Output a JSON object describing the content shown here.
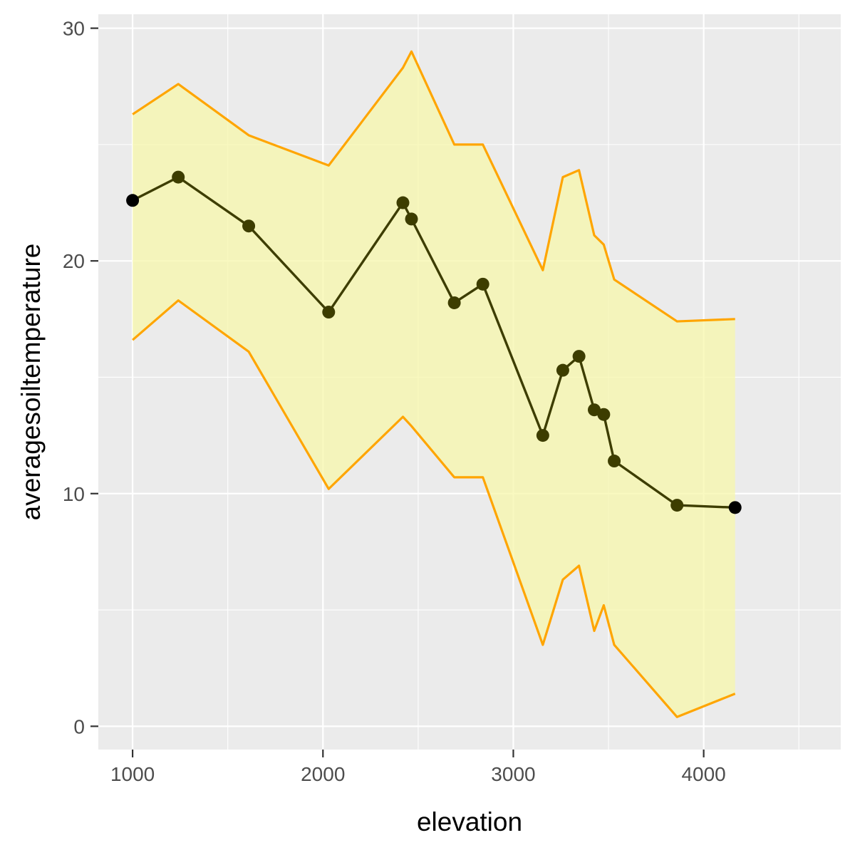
{
  "chart_data": {
    "type": "line",
    "title": "",
    "xlabel": "elevation",
    "ylabel": "averagesoiltemperature",
    "xlim": [
      820,
      4720
    ],
    "ylim": [
      -1.0,
      30.6
    ],
    "x_ticks": [
      1000,
      2000,
      3000,
      4000
    ],
    "x_tick_labels": [
      "1000",
      "2000",
      "3000",
      "4000"
    ],
    "x_minor_ticks": [
      1500,
      2500,
      3500,
      4500
    ],
    "y_ticks": [
      0,
      10,
      20,
      30
    ],
    "y_tick_labels": [
      "0",
      "10",
      "20",
      "30"
    ],
    "y_minor_ticks": [
      5,
      15,
      25
    ],
    "grid": true,
    "legend": "none",
    "x": [
      1000,
      1240,
      1610,
      2030,
      2420,
      2465,
      2690,
      2840,
      3155,
      3260,
      3345,
      3425,
      3475,
      3530,
      3860,
      4165
    ],
    "series": [
      {
        "values": [
          22.6,
          23.6,
          21.5,
          17.8,
          22.5,
          21.8,
          18.2,
          19.0,
          12.5,
          15.3,
          15.9,
          13.6,
          13.4,
          11.4,
          9.5,
          9.4
        ]
      },
      {
        "values": [
          26.3,
          27.6,
          25.4,
          24.1,
          28.3,
          29.0,
          25.0,
          25.0,
          19.6,
          23.6,
          23.9,
          21.1,
          20.7,
          19.2,
          17.4,
          17.5
        ]
      },
      {
        "values": [
          16.6,
          18.3,
          16.1,
          10.2,
          13.3,
          12.9,
          10.7,
          10.7,
          3.5,
          6.3,
          6.9,
          4.1,
          5.2,
          3.5,
          0.4,
          1.4
        ]
      }
    ],
    "colors": {
      "line": "#3d3d00",
      "point": "#3d3d00",
      "endpoint": "#000000",
      "band_fill": "#f7f7a8",
      "band_edge": "#ffa500",
      "panel": "#ebebeb",
      "grid": "#ffffff"
    }
  }
}
